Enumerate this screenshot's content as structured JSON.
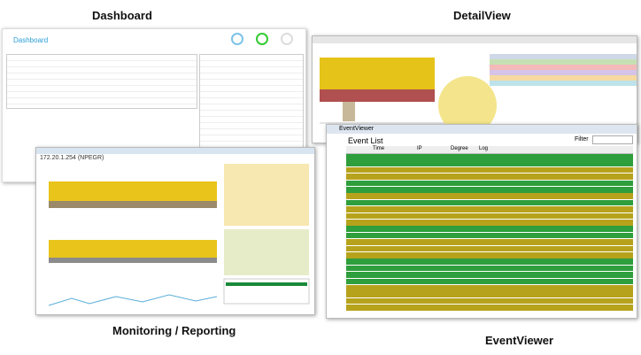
{
  "labels": {
    "dashboard": "Dashboard",
    "detail_view": "DetailView",
    "monitoring": "Monitoring / Reporting",
    "event_viewer": "EventViewer"
  },
  "dashboard_window": {
    "title": "Dashboard"
  },
  "monitoring_window": {
    "title": "172.20.1.254 (NPEGR)"
  },
  "event_window": {
    "title": "EventViewer",
    "heading": "Event List",
    "filter_label": "Filter",
    "columns": [
      "Time",
      "IP",
      "Degree",
      "Log"
    ]
  }
}
